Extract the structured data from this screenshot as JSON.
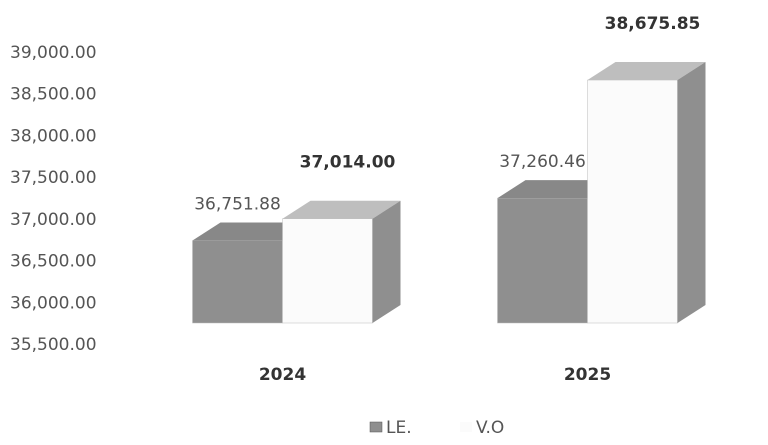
{
  "chart_data": {
    "type": "bar3d",
    "categories": [
      "2024",
      "2025"
    ],
    "series": [
      {
        "name": "LE.",
        "color": "#8f8f8f",
        "values": [
          36751.88,
          37260.46
        ],
        "value_labels": [
          "36,751.88",
          "37,260.46"
        ]
      },
      {
        "name": "V.O",
        "color": "#fbfbfb",
        "values": [
          37014.0,
          38675.85
        ],
        "value_labels": [
          "37,014.00",
          "38,675.85"
        ]
      }
    ],
    "ylim": [
      35500,
      39000
    ],
    "yticks": [
      {
        "value": 35500,
        "label": "35,500.00"
      },
      {
        "value": 36000,
        "label": "36,000.00"
      },
      {
        "value": 36500,
        "label": "36,500.00"
      },
      {
        "value": 37000,
        "label": "37,000.00"
      },
      {
        "value": 37500,
        "label": "37,500.00"
      },
      {
        "value": 38000,
        "label": "38,000.00"
      },
      {
        "value": 38500,
        "label": "38,500.00"
      },
      {
        "value": 39000,
        "label": "39,000.00"
      }
    ],
    "grid": false,
    "legend": "bottom"
  }
}
